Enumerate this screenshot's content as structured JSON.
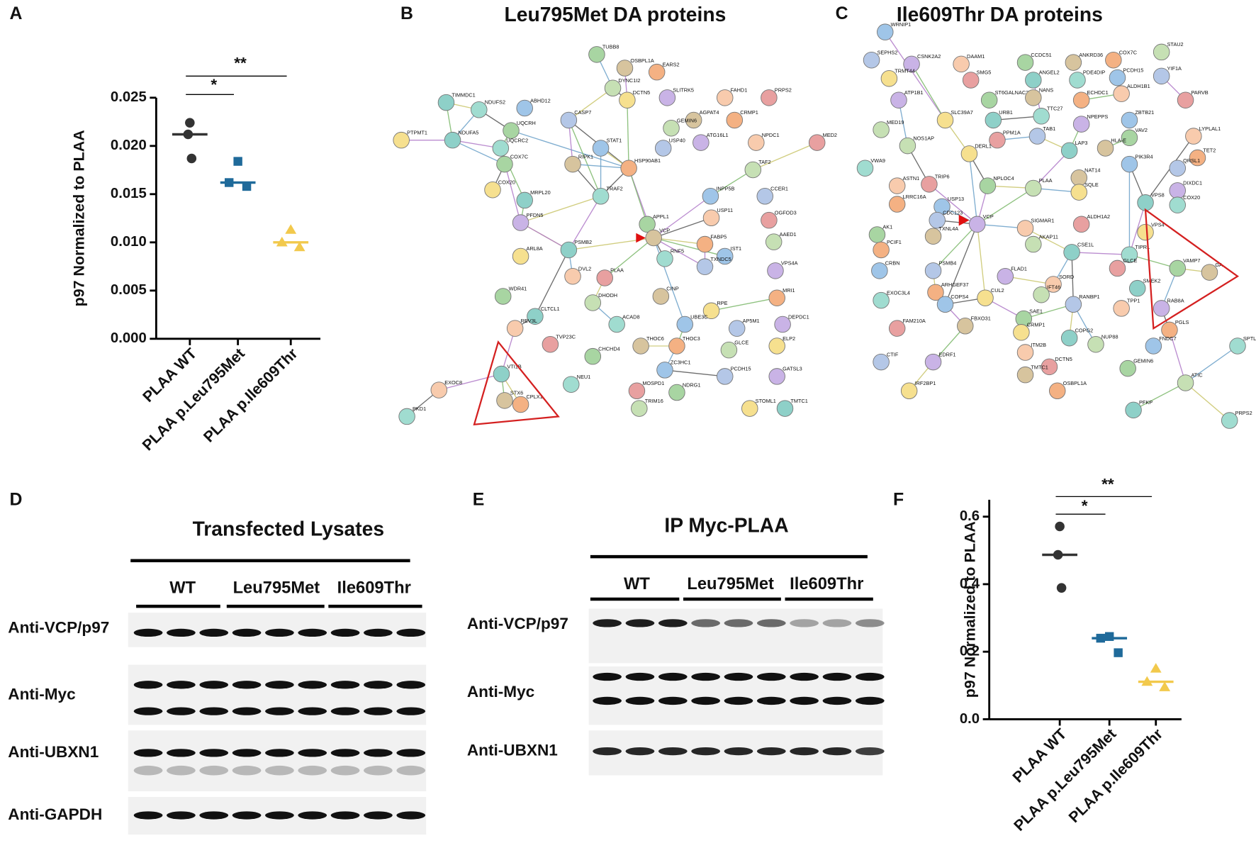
{
  "panel_labels": [
    "A",
    "B",
    "C",
    "D",
    "E",
    "F"
  ],
  "chart_data": [
    {
      "type": "scatter",
      "y_label": "p97 Normalized to PLAA",
      "categories": [
        "PLAA WT",
        "PLAA p.Leu795Met",
        "PLAA p.Ile609Thr"
      ],
      "series": [
        {
          "color": "#333333",
          "marker": "circle",
          "values": [
            0.0224,
            0.0212,
            0.0187
          ],
          "median": 0.0212
        },
        {
          "color": "#1f6a9a",
          "marker": "square",
          "values": [
            0.0184,
            0.0162,
            0.0158
          ],
          "median": 0.0162
        },
        {
          "color": "#f2c94c",
          "marker": "triangle",
          "values": [
            0.0113,
            0.01,
            0.0095
          ],
          "median": 0.01
        }
      ],
      "ylim": [
        0,
        0.025
      ],
      "yticks": [
        {
          "value": 0,
          "label": "0.000"
        },
        0.005,
        {
          "value": 0.01,
          "label": "0.010"
        },
        0.015,
        {
          "value": 0.02,
          "label": "0.020"
        },
        0.025
      ],
      "annotations": [
        "*",
        "**"
      ]
    },
    {
      "type": "scatter",
      "y_label": "p97 Normalized to PLAA",
      "categories": [
        "PLAA WT",
        "PLAA p.Leu795Met",
        "PLAA p.Ile609Thr"
      ],
      "series": [
        {
          "color": "#333333",
          "marker": "circle",
          "values": [
            0.571,
            0.487,
            0.389
          ],
          "median": 0.487
        },
        {
          "color": "#1f6a9a",
          "marker": "square",
          "values": [
            0.245,
            0.24,
            0.197
          ],
          "median": 0.24
        },
        {
          "color": "#f2c94c",
          "marker": "triangle",
          "values": [
            0.15,
            0.111,
            0.095
          ],
          "median": 0.111
        }
      ],
      "ylim": [
        0,
        0.65
      ],
      "yticks": [
        {
          "value": 0,
          "label": "0.0"
        },
        0.2,
        0.4,
        0.6
      ],
      "annotations": [
        "*",
        "**"
      ]
    }
  ],
  "networks": [
    {
      "title": "Leu795Met DA proteins",
      "nodes": [
        "TUBB8",
        "OSBPL1A",
        "EARS2",
        "DYNC1I2",
        "DCTN5",
        "TIMMDC1",
        "NDUFS2",
        "ABHD12",
        "CASP7",
        "SLITRK5",
        "FAHD1",
        "PRPS2",
        "UQCRH",
        "AGPAT4",
        "CRMP1",
        "GEMIN6",
        "PTPMT1",
        "NDUFA5",
        "UQCRC2",
        "STAT1",
        "USP40",
        "ATG16L1",
        "NPDC1",
        "MED2",
        "COX7C",
        "RIPK1",
        "HSP90AB1",
        "TAF2",
        "COX20",
        "MRPL20",
        "TRAF2",
        "INPP5B",
        "CCER1",
        "PFDN5",
        "USP11",
        "OGFOD3",
        "APPL1",
        "VCP",
        "FABP5",
        "AAED1",
        "ARL8A",
        "PSMB2",
        "RNF5",
        "IST1",
        "TXNDC5",
        "VPS4A",
        "DVL2",
        "PLAA",
        "WDR41",
        "CINP",
        "MRI1",
        "DHODH",
        "RPE",
        "CLTCL1",
        "ACAD8",
        "UBE3C",
        "AP5M1",
        "DEPDC1",
        "REV3L",
        "TVP23C",
        "CHCHD4",
        "THOC6",
        "THOC3",
        "GLCE",
        "ELP2",
        "VTI1B",
        "NEU1",
        "ZC3HC1",
        "PCDH15",
        "GATSL3",
        "EXOC8",
        "MOSPD1",
        "NDRG1",
        "STX6",
        "CPLX1",
        "TRIM16",
        "STOML1",
        "TMTC1",
        "PKD1"
      ]
    },
    {
      "title": "Ile609Thr DA proteins",
      "nodes": [
        "WRNIP1",
        "SEPHS2",
        "CSNK2A2",
        "DAAM1",
        "SMG5",
        "CCDC51",
        "ANKRD36",
        "COX7C",
        "STAU2",
        "TRMT44",
        "ANGEL2",
        "PDE4DIP",
        "PCDH15",
        "YIF1A",
        "ATP1B1",
        "ALDH1B1",
        "PARVB",
        "ST6GALNAC2",
        "NANS",
        "ECHDC1",
        "MED19",
        "SLC39A7",
        "URB1",
        "TTC27",
        "ZBTB21",
        "TAB1",
        "NPEPPS",
        "LYPLAL1",
        "PPM1A",
        "VAV2",
        "HLA-E",
        "TET2",
        "NOS1AP",
        "DERL1",
        "LAP3",
        "VWA9",
        "PIK3R4",
        "QRSL1",
        "DIXDC1",
        "ASTN1",
        "TRIP6",
        "NPLOC4",
        "NAT14",
        "LRRC16A",
        "PLAA",
        "SQLE",
        "VPS8",
        "COX20",
        "USP13",
        "CDC123",
        "VCP",
        "SIGMAR1",
        "ALDH1A2",
        "AK1",
        "TXNL4A",
        "PCIF1",
        "AKAP11",
        "VPS4",
        "CSE1L",
        "TIPRL",
        "CRBN",
        "PSMB4",
        "FLAD1",
        "SORD",
        "GLCE",
        "VAMP7",
        "GA",
        "ARHGEF37",
        "IFT46",
        "CUL2",
        "SMEK2",
        "EXOC3L4",
        "COPS4",
        "RANBP1",
        "RAB8A",
        "TPP1",
        "FAM210A",
        "SAE1",
        "FBXO31",
        "PGLS",
        "NUP88",
        "CRMP1",
        "COPG2",
        "SPTL",
        "FNDC7",
        "CTIF",
        "EDRF1",
        "ITM2B",
        "DCTN5",
        "GEMIN6",
        "TMTC1",
        "OSBPL1A",
        "ATIC",
        "IRF2BP1",
        "PFKP",
        "PRPS2"
      ]
    }
  ],
  "blots": [
    {
      "title": "Transfected Lysates",
      "groups": [
        "WT",
        "Leu795Met",
        "Ile609Thr"
      ],
      "rows": [
        "Anti-VCP/p97",
        "Anti-Myc",
        "Anti-UBXN1",
        "Anti-GAPDH"
      ]
    },
    {
      "title": "IP Myc-PLAA",
      "groups": [
        "WT",
        "Leu795Met",
        "Ile609Thr"
      ],
      "rows": [
        "Anti-VCP/p97",
        "Anti-Myc",
        "Anti-UBXN1"
      ]
    }
  ]
}
